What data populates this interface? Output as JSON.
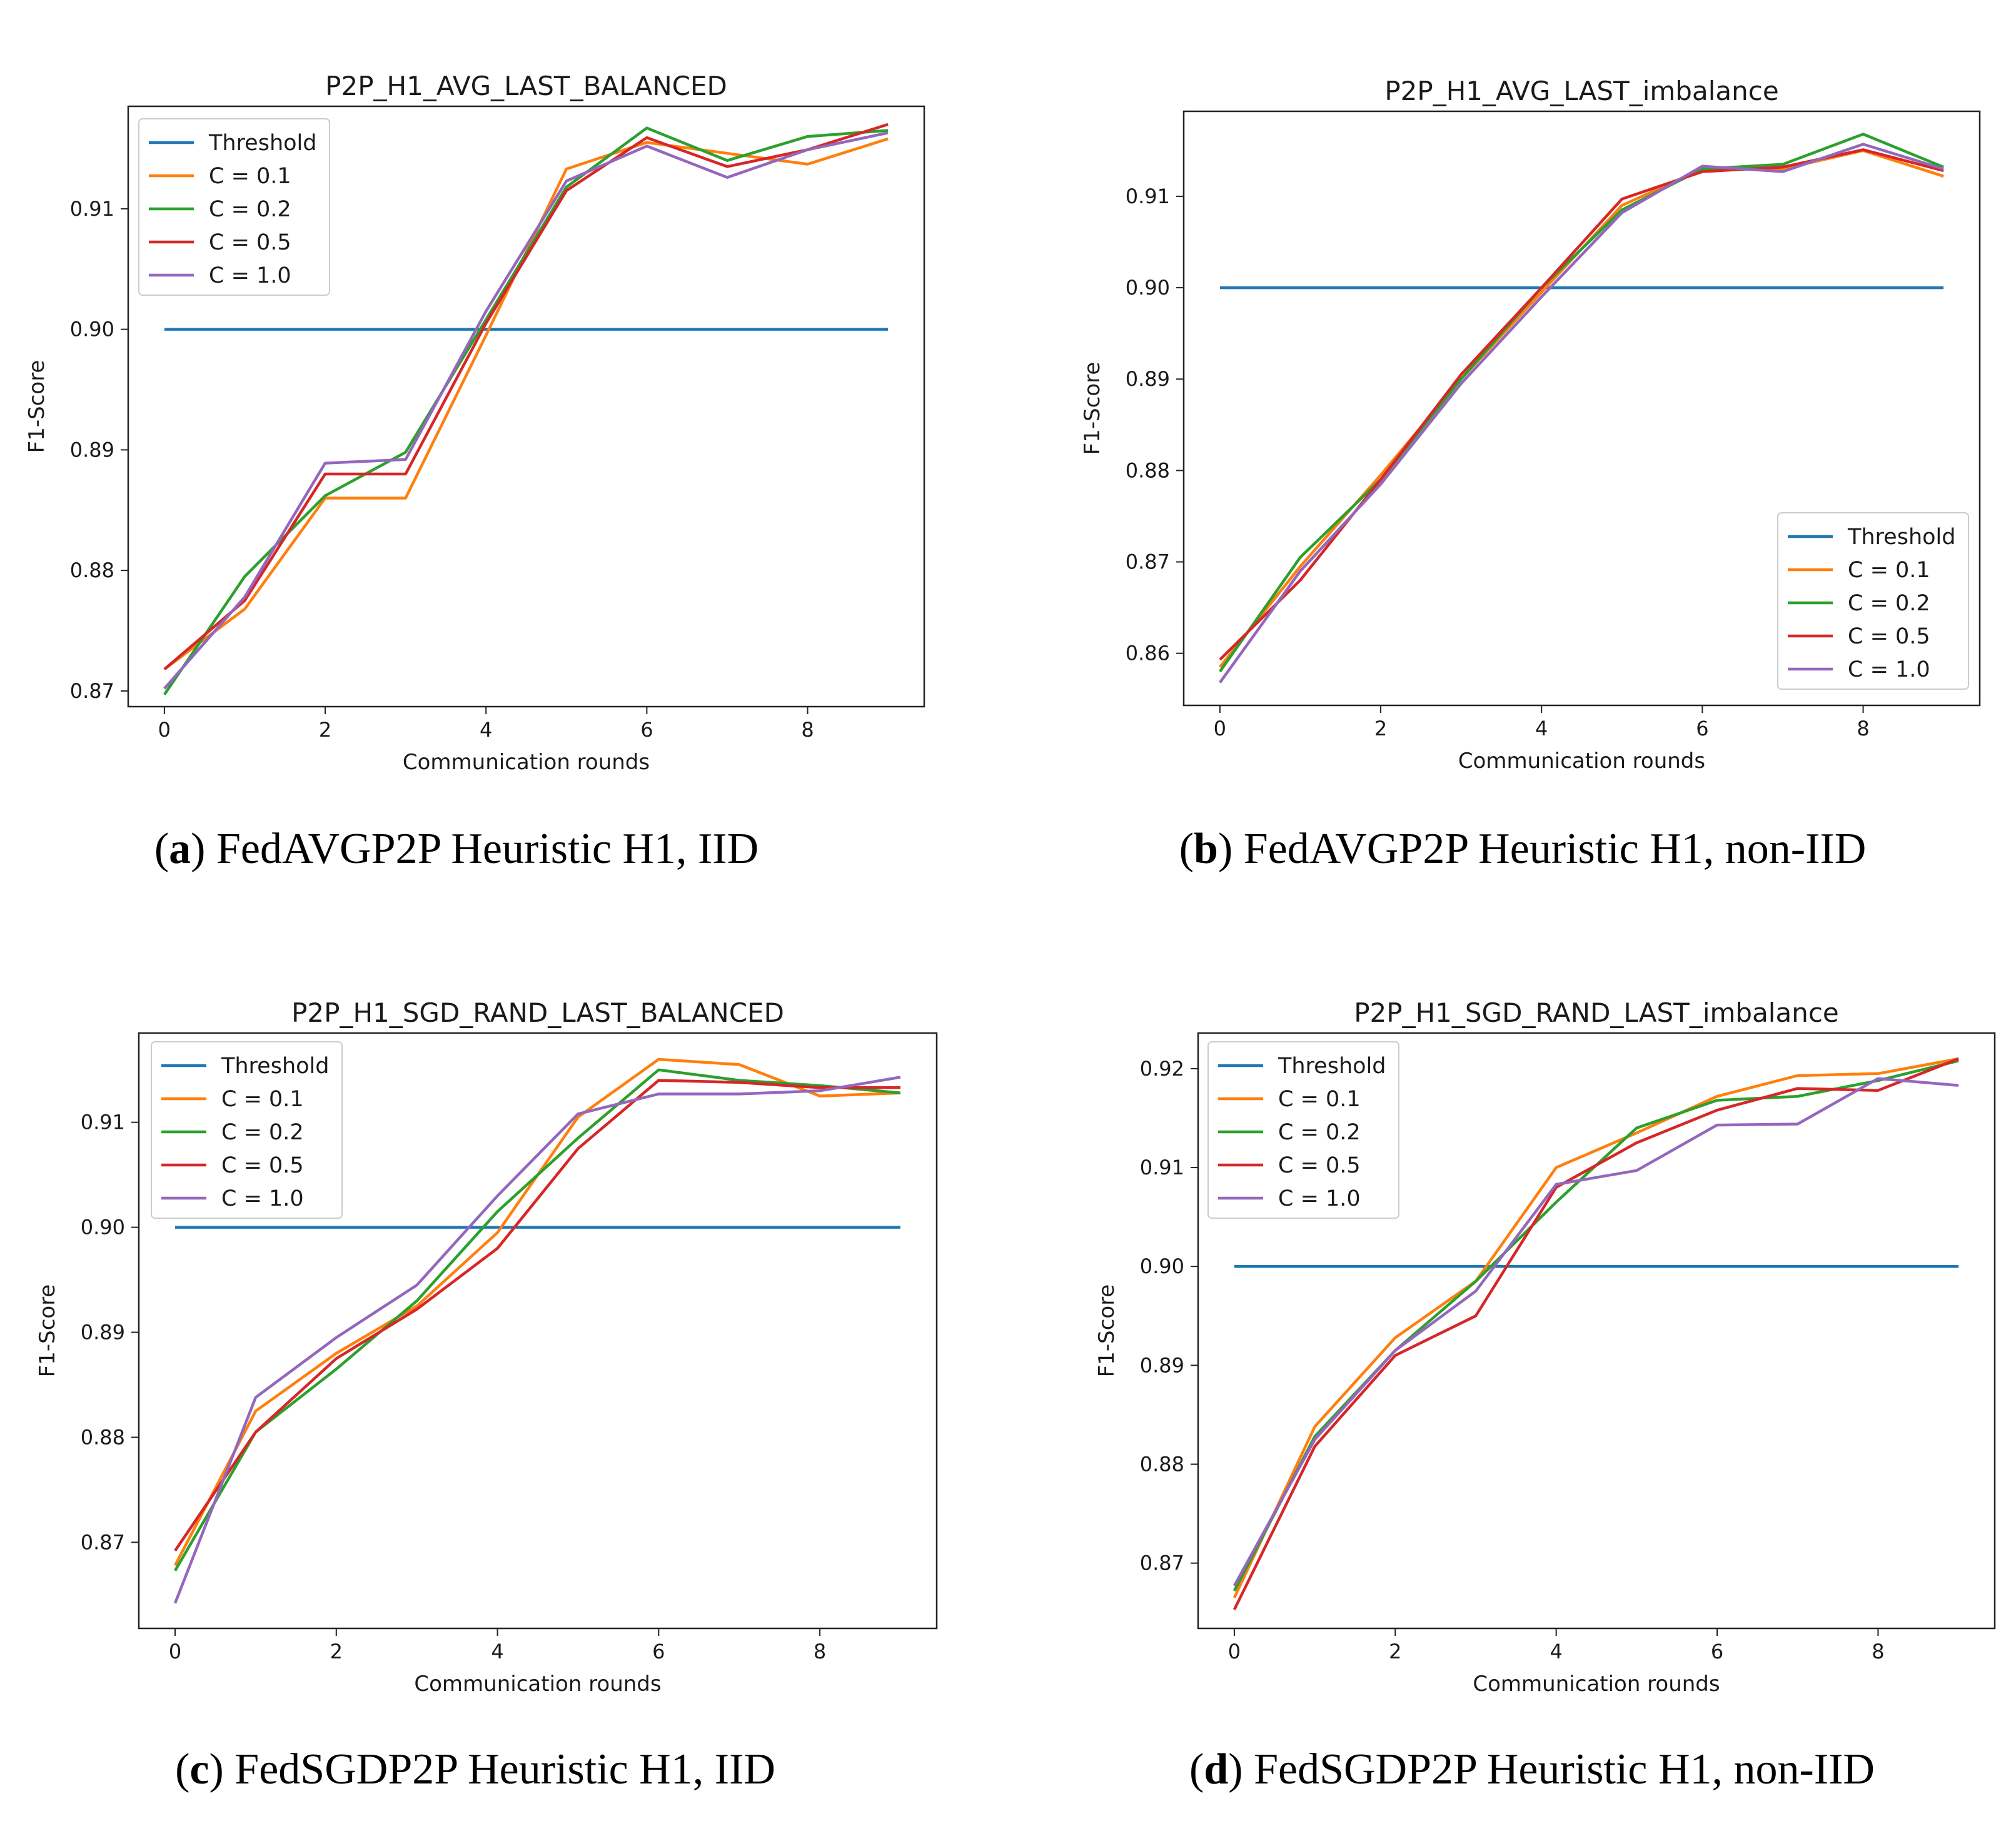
{
  "chart_data": [
    {
      "type": "line",
      "title": "P2P_H1_AVG_LAST_BALANCED",
      "xlabel": "Communication rounds",
      "ylabel": "F1-Score",
      "x": [
        0,
        1,
        2,
        3,
        4,
        5,
        6,
        7,
        8,
        9
      ],
      "xlim": [
        -0.45,
        9.45
      ],
      "ylim": [
        0.8687,
        0.9185
      ],
      "xticks": [
        0,
        2,
        4,
        6,
        8
      ],
      "xtick_labels": [
        "0",
        "2",
        "4",
        "6",
        "8"
      ],
      "yticks": [
        0.87,
        0.88,
        0.89,
        0.9,
        0.91
      ],
      "ytick_labels": [
        "0.87",
        "0.88",
        "0.89",
        "0.90",
        "0.91"
      ],
      "legend_position": "top-left",
      "series": [
        {
          "name": "Threshold",
          "color": "#1f77b4",
          "values": [
            0.9,
            0.9,
            0.9,
            0.9,
            0.9,
            0.9,
            0.9,
            0.9,
            0.9,
            0.9
          ]
        },
        {
          "name": "C = 0.1",
          "color": "#ff7f0e",
          "values": [
            0.8718,
            0.8768,
            0.886,
            0.886,
            0.8995,
            0.9133,
            0.9155,
            0.9146,
            0.9137,
            0.9158
          ]
        },
        {
          "name": "C = 0.2",
          "color": "#2ca02c",
          "values": [
            0.8697,
            0.8795,
            0.8862,
            0.8898,
            0.9008,
            0.9118,
            0.9167,
            0.914,
            0.916,
            0.9165
          ]
        },
        {
          "name": "C = 0.5",
          "color": "#d62728",
          "values": [
            0.8718,
            0.8775,
            0.888,
            0.888,
            0.9005,
            0.9115,
            0.9159,
            0.9135,
            0.9149,
            0.917
          ]
        },
        {
          "name": "C = 1.0",
          "color": "#9467bd",
          "values": [
            0.8702,
            0.8778,
            0.8889,
            0.8892,
            0.9015,
            0.9123,
            0.9152,
            0.9126,
            0.9149,
            0.9163
          ]
        }
      ]
    },
    {
      "type": "line",
      "title": "P2P_H1_AVG_LAST_imbalance",
      "xlabel": "Communication rounds",
      "ylabel": "F1-Score",
      "x": [
        0,
        1,
        2,
        3,
        4,
        5,
        6,
        7,
        8,
        9
      ],
      "xlim": [
        -0.45,
        9.45
      ],
      "ylim": [
        0.8543,
        0.9193
      ],
      "xticks": [
        0,
        2,
        4,
        6,
        8
      ],
      "xtick_labels": [
        "0",
        "2",
        "4",
        "6",
        "8"
      ],
      "yticks": [
        0.86,
        0.87,
        0.88,
        0.89,
        0.9,
        0.91
      ],
      "ytick_labels": [
        "0.86",
        "0.87",
        "0.88",
        "0.89",
        "0.90",
        "0.91"
      ],
      "legend_position": "bottom-right",
      "series": [
        {
          "name": "Threshold",
          "color": "#1f77b4",
          "values": [
            0.9,
            0.9,
            0.9,
            0.9,
            0.9,
            0.9,
            0.9,
            0.9,
            0.9,
            0.9
          ]
        },
        {
          "name": "C = 0.1",
          "color": "#ff7f0e",
          "values": [
            0.8585,
            0.8695,
            0.8795,
            0.89,
            0.8995,
            0.909,
            0.913,
            0.913,
            0.915,
            0.9122
          ]
        },
        {
          "name": "C = 0.2",
          "color": "#2ca02c",
          "values": [
            0.858,
            0.8705,
            0.879,
            0.89,
            0.9,
            0.9085,
            0.913,
            0.9135,
            0.9168,
            0.9132
          ]
        },
        {
          "name": "C = 0.5",
          "color": "#d62728",
          "values": [
            0.8593,
            0.868,
            0.879,
            0.8905,
            0.9,
            0.9097,
            0.9127,
            0.9132,
            0.9151,
            0.9128
          ]
        },
        {
          "name": "C = 1.0",
          "color": "#9467bd",
          "values": [
            0.8568,
            0.869,
            0.8785,
            0.8895,
            0.899,
            0.9082,
            0.9133,
            0.9127,
            0.9157,
            0.913
          ]
        }
      ]
    },
    {
      "type": "line",
      "title": "P2P_H1_SGD_RAND_LAST_BALANCED",
      "xlabel": "Communication rounds",
      "ylabel": "F1-Score",
      "x": [
        0,
        1,
        2,
        3,
        4,
        5,
        6,
        7,
        8,
        9
      ],
      "xlim": [
        -0.45,
        9.45
      ],
      "ylim": [
        0.8618,
        0.9185
      ],
      "xticks": [
        0,
        2,
        4,
        6,
        8
      ],
      "xtick_labels": [
        "0",
        "2",
        "4",
        "6",
        "8"
      ],
      "yticks": [
        0.87,
        0.88,
        0.89,
        0.9,
        0.91
      ],
      "ytick_labels": [
        "0.87",
        "0.88",
        "0.89",
        "0.90",
        "0.91"
      ],
      "legend_position": "top-left",
      "series": [
        {
          "name": "Threshold",
          "color": "#1f77b4",
          "values": [
            0.9,
            0.9,
            0.9,
            0.9,
            0.9,
            0.9,
            0.9,
            0.9,
            0.9,
            0.9
          ]
        },
        {
          "name": "C = 0.1",
          "color": "#ff7f0e",
          "values": [
            0.8678,
            0.8825,
            0.888,
            0.8925,
            0.8995,
            0.9105,
            0.916,
            0.9155,
            0.9125,
            0.9128
          ]
        },
        {
          "name": "C = 0.2",
          "color": "#2ca02c",
          "values": [
            0.8673,
            0.8805,
            0.8865,
            0.893,
            0.9015,
            0.9085,
            0.915,
            0.914,
            0.9135,
            0.9128
          ]
        },
        {
          "name": "C = 0.5",
          "color": "#d62728",
          "values": [
            0.8692,
            0.8805,
            0.8875,
            0.8922,
            0.898,
            0.9075,
            0.914,
            0.9138,
            0.9133,
            0.9133
          ]
        },
        {
          "name": "C = 1.0",
          "color": "#9467bd",
          "values": [
            0.8642,
            0.8838,
            0.8895,
            0.8945,
            0.903,
            0.9108,
            0.9127,
            0.9127,
            0.913,
            0.9143
          ]
        }
      ]
    },
    {
      "type": "line",
      "title": "P2P_H1_SGD_RAND_LAST_imbalance",
      "xlabel": "Communication rounds",
      "ylabel": "F1-Score",
      "x": [
        0,
        1,
        2,
        3,
        4,
        5,
        6,
        7,
        8,
        9
      ],
      "xlim": [
        -0.45,
        9.45
      ],
      "ylim": [
        0.8634,
        0.9236
      ],
      "xticks": [
        0,
        2,
        4,
        6,
        8
      ],
      "xtick_labels": [
        "0",
        "2",
        "4",
        "6",
        "8"
      ],
      "yticks": [
        0.87,
        0.88,
        0.89,
        0.9,
        0.91,
        0.92
      ],
      "ytick_labels": [
        "0.87",
        "0.88",
        "0.89",
        "0.90",
        "0.91",
        "0.92"
      ],
      "legend_position": "top-left",
      "series": [
        {
          "name": "Threshold",
          "color": "#1f77b4",
          "values": [
            0.9,
            0.9,
            0.9,
            0.9,
            0.9,
            0.9,
            0.9,
            0.9,
            0.9,
            0.9
          ]
        },
        {
          "name": "C = 0.1",
          "color": "#ff7f0e",
          "values": [
            0.8665,
            0.8838,
            0.8928,
            0.8985,
            0.91,
            0.9135,
            0.9172,
            0.9193,
            0.9195,
            0.921
          ]
        },
        {
          "name": "C = 0.2",
          "color": "#2ca02c",
          "values": [
            0.8672,
            0.8828,
            0.8915,
            0.8985,
            0.9065,
            0.914,
            0.9168,
            0.9172,
            0.9188,
            0.9208
          ]
        },
        {
          "name": "C = 0.5",
          "color": "#d62728",
          "values": [
            0.8653,
            0.8818,
            0.891,
            0.895,
            0.908,
            0.9125,
            0.9158,
            0.918,
            0.9178,
            0.921
          ]
        },
        {
          "name": "C = 1.0",
          "color": "#9467bd",
          "values": [
            0.8677,
            0.8825,
            0.8915,
            0.8975,
            0.9083,
            0.9097,
            0.9143,
            0.9144,
            0.919,
            0.9183
          ]
        }
      ]
    }
  ],
  "captions": [
    {
      "letter": "a",
      "text": "FedAVGP2P Heuristic H1, IID"
    },
    {
      "letter": "b",
      "text": "FedAVGP2P Heuristic H1, non-IID"
    },
    {
      "letter": "c",
      "text": "FedSGDP2P Heuristic H1, IID"
    },
    {
      "letter": "d",
      "text": "FedSGDP2P Heuristic H1, non-IID"
    }
  ]
}
